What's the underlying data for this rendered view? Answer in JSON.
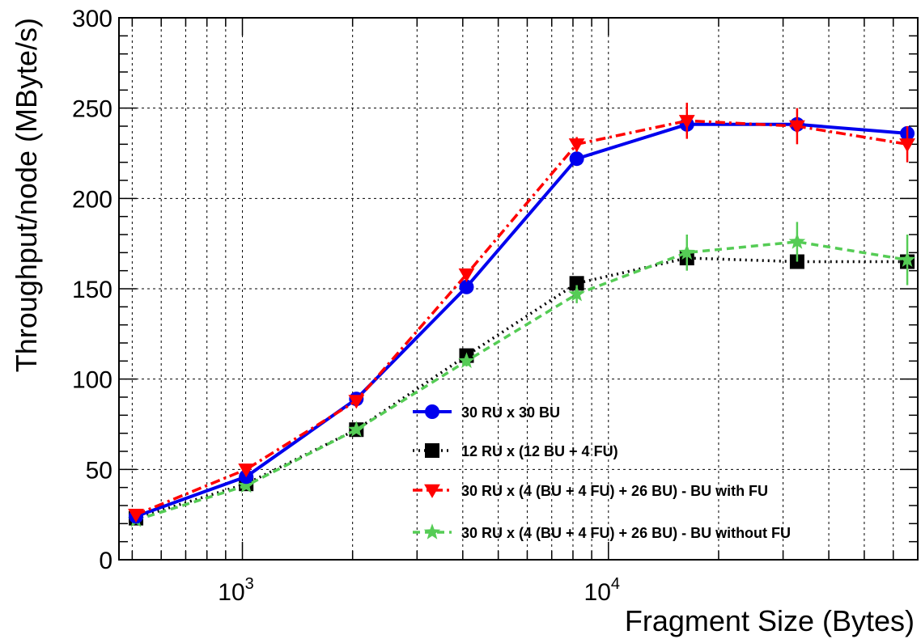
{
  "chart_data": {
    "type": "line",
    "xlabel": "Fragment Size (Bytes)",
    "ylabel": "Throughput/node (MByte/s)",
    "xscale": "log",
    "xlim": [
      460,
      70000
    ],
    "ylim": [
      0,
      300
    ],
    "grid": true,
    "legend_position": "center-right",
    "x_tick_labels": [
      {
        "base": "10",
        "exp": "3",
        "value": 1000
      },
      {
        "base": "10",
        "exp": "4",
        "value": 10000
      }
    ],
    "y_ticks": [
      0,
      50,
      100,
      150,
      200,
      250,
      300
    ],
    "x": [
      512,
      1024,
      2048,
      4096,
      8192,
      16384,
      32768,
      65536
    ],
    "series": [
      {
        "name": "30 RU x 30 BU",
        "color": "#0000ee",
        "marker": "circle",
        "line": "solid",
        "values": [
          24,
          46,
          89,
          151,
          222,
          241,
          241,
          236
        ],
        "errors": [
          1,
          1,
          2,
          2,
          3,
          4,
          3,
          3
        ]
      },
      {
        "name": "12 RU x (12 BU + 4 FU)",
        "color": "#000000",
        "marker": "square",
        "line": "dotted",
        "values": [
          23,
          42,
          72,
          113,
          153,
          167,
          165,
          165
        ],
        "errors": [
          1,
          1,
          2,
          2,
          2,
          3,
          3,
          3
        ]
      },
      {
        "name": "30 RU x (4 (BU + 4 FU) + 26 BU) - BU with FU",
        "color": "#ff0000",
        "marker": "triangle-down",
        "line": "dashdot",
        "values": [
          25,
          50,
          88,
          158,
          230,
          243,
          240,
          230
        ],
        "errors": [
          1,
          2,
          3,
          3,
          4,
          10,
          10,
          10
        ]
      },
      {
        "name": "30 RU x (4 (BU + 4 FU) + 26 BU) - BU without FU",
        "color": "#55cc55",
        "marker": "star",
        "line": "dashed",
        "values": [
          22,
          41,
          72,
          110,
          147,
          170,
          176,
          166
        ],
        "errors": [
          1,
          2,
          2,
          3,
          5,
          10,
          11,
          14
        ]
      }
    ]
  }
}
